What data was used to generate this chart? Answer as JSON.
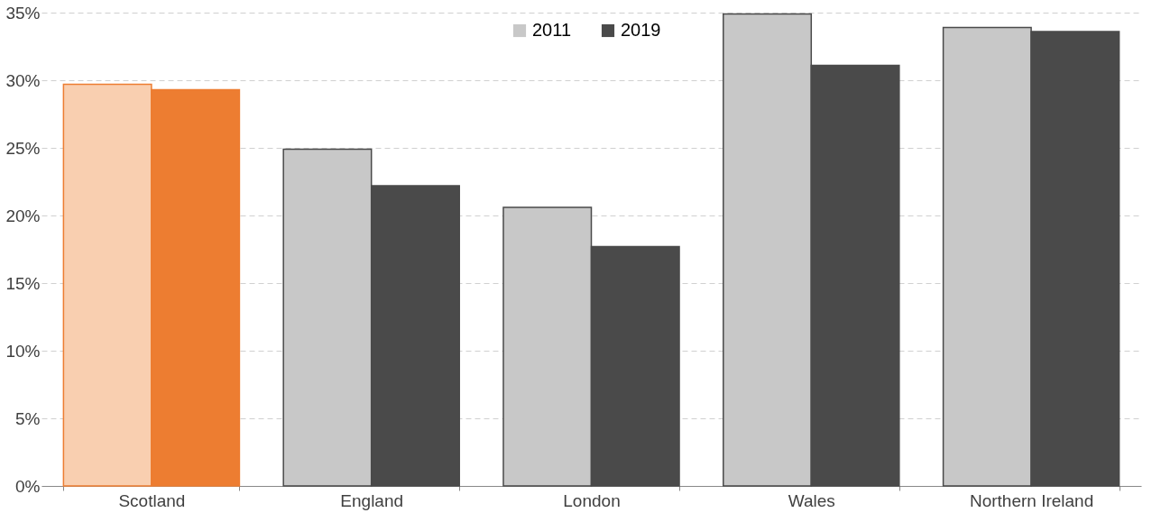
{
  "chart_data": {
    "type": "bar",
    "categories": [
      "Scotland",
      "England",
      "London",
      "Wales",
      "Northern Ireland"
    ],
    "series": [
      {
        "name": "2011",
        "color": "#c8c8c8",
        "colors": [
          "#f9cfb0",
          "#c8c8c8",
          "#c8c8c8",
          "#c8c8c8",
          "#c8c8c8"
        ],
        "values": [
          29.7,
          24.9,
          20.6,
          34.9,
          33.9
        ]
      },
      {
        "name": "2019",
        "color": "#4a4a4a",
        "colors": [
          "#ed7d31",
          "#4a4a4a",
          "#4a4a4a",
          "#4a4a4a",
          "#4a4a4a"
        ],
        "values": [
          29.3,
          22.2,
          17.7,
          31.1,
          33.6
        ]
      }
    ],
    "ylim": [
      0,
      35
    ],
    "yticks": [
      {
        "value": 0,
        "label": "0%"
      },
      {
        "value": 5,
        "label": "5%"
      },
      {
        "value": 10,
        "label": "10%"
      },
      {
        "value": 15,
        "label": "15%"
      },
      {
        "value": 20,
        "label": "20%"
      },
      {
        "value": 25,
        "label": "25%"
      },
      {
        "value": 30,
        "label": "30%"
      },
      {
        "value": 35,
        "label": "35%"
      }
    ],
    "grid": "y",
    "legend": "top"
  }
}
